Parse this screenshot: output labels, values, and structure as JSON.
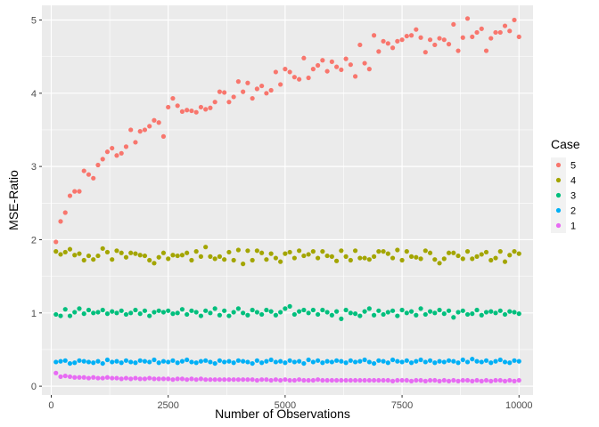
{
  "chart_data": {
    "type": "scatter",
    "xlabel": "Number of Observations",
    "ylabel": "MSE-Ratio",
    "xlim": [
      -200,
      10300
    ],
    "ylim": [
      -0.12,
      5.2
    ],
    "x_ticks": [
      0,
      2500,
      5000,
      7500,
      10000
    ],
    "x_tick_labels": [
      "0",
      "2500",
      "5000",
      "7500",
      "10000"
    ],
    "y_ticks": [
      0,
      1,
      2,
      3,
      4,
      5
    ],
    "y_tick_labels": [
      "0",
      "1",
      "2",
      "3",
      "4",
      "5"
    ],
    "grid": true,
    "legend": {
      "title": "Case",
      "position": "right",
      "entries": [
        "5",
        "4",
        "3",
        "2",
        "1"
      ]
    },
    "x": [
      100,
      200,
      300,
      400,
      500,
      600,
      700,
      800,
      900,
      1000,
      1100,
      1200,
      1300,
      1400,
      1500,
      1600,
      1700,
      1800,
      1900,
      2000,
      2100,
      2200,
      2300,
      2400,
      2500,
      2600,
      2700,
      2800,
      2900,
      3000,
      3100,
      3200,
      3300,
      3400,
      3500,
      3600,
      3700,
      3800,
      3900,
      4000,
      4100,
      4200,
      4300,
      4400,
      4500,
      4600,
      4700,
      4800,
      4900,
      5000,
      5100,
      5200,
      5300,
      5400,
      5500,
      5600,
      5700,
      5800,
      5900,
      6000,
      6100,
      6200,
      6300,
      6400,
      6500,
      6600,
      6700,
      6800,
      6900,
      7000,
      7100,
      7200,
      7300,
      7400,
      7500,
      7600,
      7700,
      7800,
      7900,
      8000,
      8100,
      8200,
      8300,
      8400,
      8500,
      8600,
      8700,
      8800,
      8900,
      9000,
      9100,
      9200,
      9300,
      9400,
      9500,
      9600,
      9700,
      9800,
      9900,
      10000
    ],
    "series": [
      {
        "name": "5",
        "color": "#F8766D",
        "values": [
          1.97,
          2.25,
          2.37,
          2.6,
          2.66,
          2.66,
          2.94,
          2.89,
          2.84,
          3.02,
          3.1,
          3.2,
          3.25,
          3.15,
          3.18,
          3.27,
          3.5,
          3.33,
          3.48,
          3.5,
          3.55,
          3.63,
          3.6,
          3.41,
          3.81,
          3.93,
          3.83,
          3.75,
          3.77,
          3.76,
          3.74,
          3.81,
          3.78,
          3.8,
          3.88,
          4.02,
          4.01,
          3.88,
          3.95,
          4.16,
          4.02,
          4.14,
          3.93,
          4.06,
          4.1,
          4.0,
          4.04,
          4.29,
          4.12,
          4.33,
          4.29,
          4.22,
          4.19,
          4.48,
          4.21,
          4.33,
          4.38,
          4.45,
          4.3,
          4.43,
          4.36,
          4.32,
          4.47,
          4.39,
          4.23,
          4.66,
          4.41,
          4.33,
          4.79,
          4.57,
          4.71,
          4.68,
          4.62,
          4.71,
          4.73,
          4.78,
          4.79,
          4.87,
          4.76,
          4.56,
          4.73,
          4.66,
          4.75,
          4.73,
          4.67,
          4.94,
          4.58,
          4.76,
          5.02,
          4.77,
          4.83,
          4.88,
          4.58,
          4.75,
          4.83,
          4.83,
          4.92,
          4.85,
          5.0,
          4.77
        ]
      },
      {
        "name": "4",
        "color": "#A3A500",
        "values": [
          1.84,
          1.8,
          1.83,
          1.87,
          1.79,
          1.81,
          1.72,
          1.78,
          1.73,
          1.78,
          1.88,
          1.83,
          1.73,
          1.85,
          1.82,
          1.76,
          1.82,
          1.81,
          1.79,
          1.78,
          1.72,
          1.68,
          1.76,
          1.82,
          1.74,
          1.79,
          1.78,
          1.79,
          1.82,
          1.72,
          1.84,
          1.77,
          1.9,
          1.77,
          1.74,
          1.77,
          1.73,
          1.83,
          1.72,
          1.86,
          1.67,
          1.85,
          1.72,
          1.85,
          1.82,
          1.73,
          1.81,
          1.75,
          1.7,
          1.81,
          1.83,
          1.75,
          1.85,
          1.78,
          1.8,
          1.84,
          1.75,
          1.84,
          1.78,
          1.77,
          1.71,
          1.85,
          1.77,
          1.72,
          1.85,
          1.75,
          1.75,
          1.73,
          1.77,
          1.84,
          1.84,
          1.81,
          1.75,
          1.86,
          1.72,
          1.84,
          1.77,
          1.76,
          1.74,
          1.85,
          1.82,
          1.73,
          1.68,
          1.74,
          1.82,
          1.82,
          1.78,
          1.74,
          1.84,
          1.74,
          1.77,
          1.8,
          1.83,
          1.72,
          1.75,
          1.84,
          1.7,
          1.79,
          1.84,
          1.81
        ]
      },
      {
        "name": "3",
        "color": "#00BF7D",
        "values": [
          0.98,
          0.96,
          1.05,
          0.96,
          1.01,
          1.06,
          0.99,
          1.04,
          1.0,
          1.01,
          1.04,
          0.99,
          1.02,
          1.0,
          1.03,
          0.98,
          1.0,
          1.04,
          0.99,
          1.03,
          0.96,
          1.01,
          1.03,
          1.01,
          1.03,
          0.99,
          1.0,
          1.05,
          0.98,
          1.03,
          1.01,
          0.96,
          1.03,
          1.0,
          1.06,
          0.97,
          1.03,
          0.96,
          1.01,
          1.06,
          1.0,
          0.97,
          1.04,
          1.01,
          0.98,
          1.04,
          1.02,
          0.97,
          1.01,
          1.06,
          1.09,
          0.98,
          1.02,
          1.04,
          1.0,
          1.04,
          0.98,
          1.04,
          1.01,
          0.97,
          1.02,
          0.92,
          1.04,
          1.0,
          0.99,
          0.96,
          1.02,
          1.06,
          0.97,
          1.03,
          0.98,
          1.01,
          1.03,
          0.96,
          1.04,
          1.0,
          1.02,
          0.97,
          1.06,
          0.98,
          1.02,
          1.0,
          1.04,
          0.99,
          1.03,
          0.94,
          1.01,
          1.03,
          0.98,
          0.99,
          1.04,
          0.97,
          1.01,
          1.02,
          1.0,
          1.03,
          0.98,
          1.02,
          1.01,
          0.99
        ]
      },
      {
        "name": "2",
        "color": "#00B0F6",
        "values": [
          0.33,
          0.34,
          0.35,
          0.31,
          0.32,
          0.35,
          0.34,
          0.33,
          0.32,
          0.34,
          0.31,
          0.36,
          0.33,
          0.34,
          0.32,
          0.35,
          0.33,
          0.32,
          0.35,
          0.34,
          0.33,
          0.36,
          0.32,
          0.34,
          0.33,
          0.35,
          0.32,
          0.34,
          0.36,
          0.33,
          0.32,
          0.34,
          0.35,
          0.33,
          0.31,
          0.35,
          0.33,
          0.34,
          0.32,
          0.35,
          0.34,
          0.33,
          0.31,
          0.35,
          0.32,
          0.34,
          0.36,
          0.33,
          0.34,
          0.32,
          0.35,
          0.33,
          0.34,
          0.31,
          0.36,
          0.33,
          0.35,
          0.32,
          0.34,
          0.33,
          0.35,
          0.34,
          0.32,
          0.35,
          0.33,
          0.34,
          0.36,
          0.33,
          0.31,
          0.35,
          0.34,
          0.32,
          0.36,
          0.34,
          0.33,
          0.35,
          0.32,
          0.34,
          0.36,
          0.33,
          0.35,
          0.32,
          0.34,
          0.33,
          0.35,
          0.34,
          0.32,
          0.36,
          0.33,
          0.37,
          0.34,
          0.33,
          0.35,
          0.32,
          0.34,
          0.36,
          0.33,
          0.32,
          0.35,
          0.34
        ]
      },
      {
        "name": "1",
        "color": "#E76BF3",
        "values": [
          0.18,
          0.13,
          0.14,
          0.13,
          0.12,
          0.12,
          0.12,
          0.11,
          0.12,
          0.11,
          0.11,
          0.12,
          0.11,
          0.11,
          0.1,
          0.11,
          0.1,
          0.11,
          0.1,
          0.1,
          0.11,
          0.1,
          0.1,
          0.1,
          0.1,
          0.09,
          0.1,
          0.1,
          0.09,
          0.1,
          0.09,
          0.1,
          0.09,
          0.09,
          0.09,
          0.09,
          0.09,
          0.09,
          0.09,
          0.09,
          0.09,
          0.09,
          0.09,
          0.08,
          0.09,
          0.09,
          0.08,
          0.09,
          0.08,
          0.09,
          0.08,
          0.08,
          0.09,
          0.08,
          0.08,
          0.08,
          0.09,
          0.08,
          0.08,
          0.08,
          0.08,
          0.08,
          0.08,
          0.08,
          0.08,
          0.08,
          0.08,
          0.08,
          0.08,
          0.08,
          0.08,
          0.08,
          0.07,
          0.08,
          0.08,
          0.08,
          0.07,
          0.08,
          0.08,
          0.07,
          0.08,
          0.08,
          0.07,
          0.08,
          0.07,
          0.08,
          0.07,
          0.08,
          0.08,
          0.07,
          0.08,
          0.07,
          0.08,
          0.07,
          0.08,
          0.08,
          0.07,
          0.08,
          0.07,
          0.08
        ]
      }
    ]
  }
}
